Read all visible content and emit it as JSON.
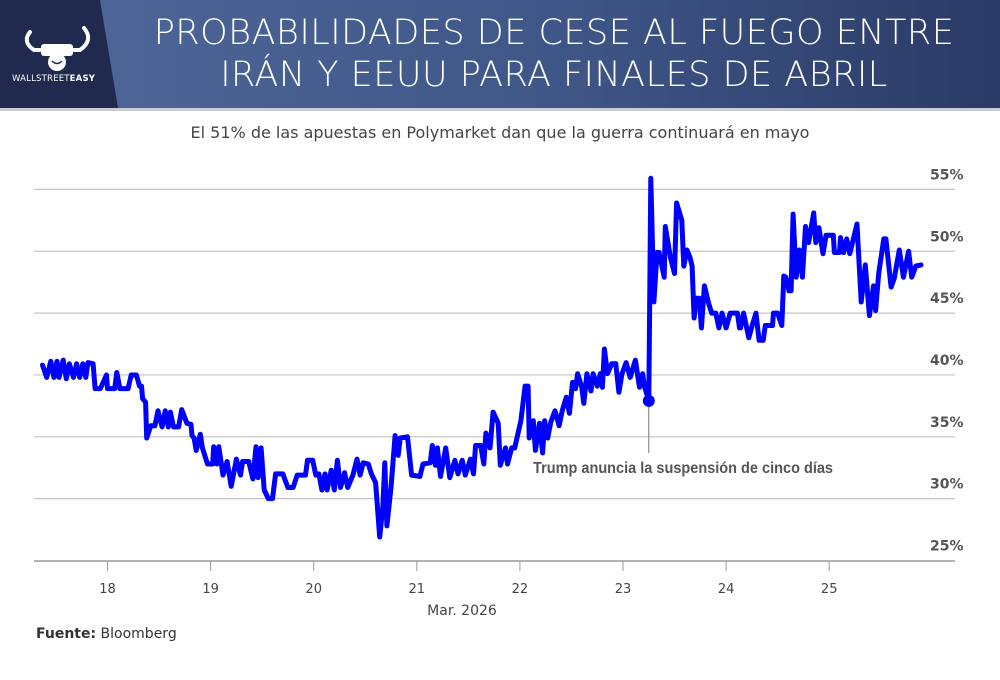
{
  "header": {
    "title_lines": [
      "PROBABILIDADES DE CESE AL FUEGO ENTRE",
      "IRÁN Y EEUU PARA FINALES DE ABRIL"
    ],
    "logo": {
      "name_regular": "WALLSTREET",
      "name_bold": "EASY",
      "icon": "bull-horns-fist-icon"
    }
  },
  "source": {
    "label": "Fuente:",
    "value": "Bloomberg"
  },
  "colors": {
    "line": "#0000ff",
    "header_dark": "#1f2a4e",
    "header_blue": "#4a6394",
    "grid": "#c4c4c4"
  },
  "chart_data": {
    "type": "line",
    "subtitle": "El 51% de las apuestas en Polymarket dan que la guerra continuará en mayo",
    "xlabel": "Mar. 2026",
    "ylabel": "",
    "x_ticks": [
      18,
      19,
      20,
      21,
      22,
      23,
      24,
      25
    ],
    "x_tick_labels": [
      "18",
      "19",
      "20",
      "21",
      "22",
      "23",
      "24",
      "25"
    ],
    "y_ticks": [
      25,
      30,
      35,
      40,
      45,
      50,
      55
    ],
    "y_tick_labels": [
      "25%",
      "30%",
      "35%",
      "40%",
      "45%",
      "50%",
      "55%"
    ],
    "y_axis_side": "right",
    "xlim": [
      17.29,
      26.22
    ],
    "ylim": [
      25,
      56
    ],
    "grid": "horizontal",
    "annotation": {
      "x": 23.25,
      "y": 37.9,
      "text": "Trump anuncia la suspensión de cinco días"
    },
    "series": [
      {
        "points": [
          [
            17.37,
            40.8
          ],
          [
            17.41,
            39.8
          ],
          [
            17.45,
            41.1
          ],
          [
            17.48,
            39.8
          ],
          [
            17.51,
            41.1
          ],
          [
            17.53,
            39.8
          ],
          [
            17.57,
            41.2
          ],
          [
            17.6,
            39.7
          ],
          [
            17.63,
            40.9
          ],
          [
            17.67,
            39.8
          ],
          [
            17.7,
            40.9
          ],
          [
            17.73,
            39.8
          ],
          [
            17.76,
            40.9
          ],
          [
            17.79,
            39.8
          ],
          [
            17.81,
            41.0
          ],
          [
            17.86,
            40.9
          ],
          [
            17.88,
            38.9
          ],
          [
            17.93,
            38.9
          ],
          [
            17.99,
            40.0
          ],
          [
            18.0,
            38.9
          ],
          [
            18.07,
            38.9
          ],
          [
            18.09,
            40.2
          ],
          [
            18.12,
            38.9
          ],
          [
            18.2,
            38.9
          ],
          [
            18.23,
            40.0
          ],
          [
            18.28,
            40.0
          ],
          [
            18.31,
            39.1
          ],
          [
            18.33,
            39.1
          ],
          [
            18.34,
            38.1
          ],
          [
            18.37,
            37.8
          ],
          [
            18.38,
            34.9
          ],
          [
            18.42,
            35.9
          ],
          [
            18.46,
            35.9
          ],
          [
            18.49,
            37.1
          ],
          [
            18.53,
            35.8
          ],
          [
            18.56,
            37.1
          ],
          [
            18.59,
            35.8
          ],
          [
            18.61,
            37.0
          ],
          [
            18.64,
            35.8
          ],
          [
            18.69,
            35.8
          ],
          [
            18.72,
            37.2
          ],
          [
            18.77,
            36.1
          ],
          [
            18.81,
            36.0
          ],
          [
            18.82,
            35.1
          ],
          [
            18.84,
            34.9
          ],
          [
            18.86,
            33.9
          ],
          [
            18.9,
            35.2
          ],
          [
            18.92,
            34.1
          ],
          [
            18.97,
            32.8
          ],
          [
            19.02,
            32.8
          ],
          [
            19.03,
            34.2
          ],
          [
            19.06,
            32.8
          ],
          [
            19.08,
            34.2
          ],
          [
            19.12,
            31.9
          ],
          [
            19.16,
            33.0
          ],
          [
            19.2,
            31.0
          ],
          [
            19.25,
            33.2
          ],
          [
            19.29,
            31.9
          ],
          [
            19.31,
            33.0
          ],
          [
            19.37,
            33.0
          ],
          [
            19.41,
            31.6
          ],
          [
            19.44,
            34.2
          ],
          [
            19.46,
            31.7
          ],
          [
            19.49,
            34.1
          ],
          [
            19.52,
            30.7
          ],
          [
            19.56,
            30.0
          ],
          [
            19.6,
            30.0
          ],
          [
            19.63,
            32.0
          ],
          [
            19.7,
            32.0
          ],
          [
            19.75,
            30.9
          ],
          [
            19.8,
            30.9
          ],
          [
            19.84,
            31.9
          ],
          [
            19.92,
            31.9
          ],
          [
            19.94,
            33.1
          ],
          [
            19.99,
            33.1
          ],
          [
            20.02,
            31.9
          ],
          [
            20.05,
            32.0
          ],
          [
            20.08,
            30.7
          ],
          [
            20.11,
            32.0
          ],
          [
            20.13,
            30.7
          ],
          [
            20.17,
            32.3
          ],
          [
            20.2,
            30.7
          ],
          [
            20.23,
            33.1
          ],
          [
            20.26,
            30.9
          ],
          [
            20.3,
            32.1
          ],
          [
            20.33,
            30.9
          ],
          [
            20.38,
            31.9
          ],
          [
            20.42,
            33.2
          ],
          [
            20.45,
            31.9
          ],
          [
            20.48,
            32.9
          ],
          [
            20.53,
            32.8
          ],
          [
            20.56,
            32.0
          ],
          [
            20.6,
            31.3
          ],
          [
            20.64,
            26.9
          ],
          [
            20.67,
            29.3
          ],
          [
            20.69,
            32.9
          ],
          [
            20.71,
            27.8
          ],
          [
            20.75,
            30.9
          ],
          [
            20.79,
            35.1
          ],
          [
            20.82,
            33.5
          ],
          [
            20.84,
            34.9
          ],
          [
            20.91,
            35.0
          ],
          [
            20.95,
            31.9
          ],
          [
            21.03,
            31.8
          ],
          [
            21.06,
            32.8
          ],
          [
            21.13,
            32.9
          ],
          [
            21.15,
            34.3
          ],
          [
            21.18,
            32.7
          ],
          [
            21.2,
            34.1
          ],
          [
            21.23,
            31.8
          ],
          [
            21.28,
            34.1
          ],
          [
            21.32,
            31.7
          ],
          [
            21.37,
            33.1
          ],
          [
            21.4,
            32.0
          ],
          [
            21.44,
            33.1
          ],
          [
            21.47,
            31.9
          ],
          [
            21.52,
            33.2
          ],
          [
            21.55,
            32.0
          ],
          [
            21.57,
            34.3
          ],
          [
            21.62,
            34.3
          ],
          [
            21.65,
            32.8
          ],
          [
            21.67,
            35.3
          ],
          [
            21.71,
            34.1
          ],
          [
            21.74,
            37.0
          ],
          [
            21.79,
            36.1
          ],
          [
            21.81,
            32.7
          ],
          [
            21.86,
            34.1
          ],
          [
            21.88,
            32.8
          ],
          [
            21.92,
            34.1
          ],
          [
            21.95,
            34.1
          ],
          [
            22.01,
            36.3
          ],
          [
            22.05,
            39.1
          ],
          [
            22.08,
            39.1
          ],
          [
            22.09,
            34.9
          ],
          [
            22.13,
            36.3
          ],
          [
            22.15,
            33.9
          ],
          [
            22.19,
            36.1
          ],
          [
            22.22,
            33.7
          ],
          [
            22.24,
            36.3
          ],
          [
            22.27,
            34.9
          ],
          [
            22.3,
            36.2
          ],
          [
            22.34,
            37.1
          ],
          [
            22.38,
            35.9
          ],
          [
            22.41,
            37.1
          ],
          [
            22.45,
            38.2
          ],
          [
            22.48,
            36.9
          ],
          [
            22.51,
            39.4
          ],
          [
            22.54,
            38.9
          ],
          [
            22.56,
            40.1
          ],
          [
            22.6,
            39.0
          ],
          [
            22.62,
            37.7
          ],
          [
            22.65,
            40.1
          ],
          [
            22.69,
            38.7
          ],
          [
            22.71,
            40.1
          ],
          [
            22.75,
            39.1
          ],
          [
            22.78,
            40.1
          ],
          [
            22.8,
            39.0
          ],
          [
            22.82,
            42.1
          ],
          [
            22.85,
            40.1
          ],
          [
            22.89,
            40.9
          ],
          [
            22.93,
            40.9
          ],
          [
            22.96,
            38.6
          ],
          [
            22.99,
            40.1
          ],
          [
            23.03,
            41.0
          ],
          [
            23.07,
            39.8
          ],
          [
            23.12,
            41.2
          ],
          [
            23.16,
            39.0
          ],
          [
            23.19,
            40.1
          ],
          [
            23.21,
            39.0
          ],
          [
            23.25,
            37.9
          ],
          [
            23.27,
            55.9
          ],
          [
            23.3,
            45.9
          ],
          [
            23.33,
            49.9
          ],
          [
            23.35,
            49.9
          ],
          [
            23.4,
            47.9
          ],
          [
            23.41,
            52.0
          ],
          [
            23.46,
            49.5
          ],
          [
            23.5,
            48.2
          ],
          [
            23.52,
            53.9
          ],
          [
            23.57,
            52.5
          ],
          [
            23.59,
            48.8
          ],
          [
            23.62,
            50.1
          ],
          [
            23.65,
            49.5
          ],
          [
            23.67,
            48.8
          ],
          [
            23.69,
            44.6
          ],
          [
            23.71,
            46.2
          ],
          [
            23.74,
            46.2
          ],
          [
            23.76,
            43.8
          ],
          [
            23.79,
            47.2
          ],
          [
            23.83,
            45.8
          ],
          [
            23.86,
            45.0
          ],
          [
            23.9,
            45.0
          ],
          [
            23.93,
            43.8
          ],
          [
            23.96,
            45.0
          ],
          [
            24.0,
            43.8
          ],
          [
            24.04,
            45.0
          ],
          [
            24.11,
            45.0
          ],
          [
            24.13,
            43.8
          ],
          [
            24.14,
            43.8
          ],
          [
            24.17,
            45.0
          ],
          [
            24.22,
            43.0
          ],
          [
            24.26,
            44.2
          ],
          [
            24.29,
            45.0
          ],
          [
            24.32,
            42.8
          ],
          [
            24.36,
            42.8
          ],
          [
            24.38,
            44.0
          ],
          [
            24.45,
            44.0
          ],
          [
            24.46,
            45.0
          ],
          [
            24.5,
            45.0
          ],
          [
            24.54,
            44.0
          ],
          [
            24.56,
            48.0
          ],
          [
            24.58,
            47.9
          ],
          [
            24.61,
            46.8
          ],
          [
            24.63,
            46.8
          ],
          [
            24.65,
            53.0
          ],
          [
            24.68,
            47.9
          ],
          [
            24.71,
            50.1
          ],
          [
            24.74,
            47.9
          ],
          [
            24.77,
            52.0
          ],
          [
            24.8,
            50.7
          ],
          [
            24.85,
            53.1
          ],
          [
            24.87,
            50.7
          ],
          [
            24.9,
            51.9
          ],
          [
            24.94,
            49.8
          ],
          [
            24.97,
            51.3
          ],
          [
            25.04,
            51.3
          ],
          [
            25.05,
            49.9
          ],
          [
            25.1,
            49.9
          ],
          [
            25.11,
            51.1
          ],
          [
            25.14,
            49.9
          ],
          [
            25.17,
            51.0
          ],
          [
            25.2,
            49.8
          ],
          [
            25.27,
            52.2
          ],
          [
            25.31,
            45.9
          ],
          [
            25.35,
            48.9
          ],
          [
            25.39,
            44.8
          ],
          [
            25.43,
            47.2
          ],
          [
            25.45,
            45.2
          ],
          [
            25.48,
            48.2
          ],
          [
            25.53,
            51.0
          ],
          [
            25.55,
            51.0
          ],
          [
            25.6,
            47.1
          ],
          [
            25.63,
            47.8
          ],
          [
            25.68,
            50.1
          ],
          [
            25.72,
            47.9
          ],
          [
            25.77,
            50.0
          ],
          [
            25.8,
            47.9
          ],
          [
            25.84,
            48.8
          ],
          [
            25.89,
            48.9
          ]
        ]
      }
    ]
  }
}
